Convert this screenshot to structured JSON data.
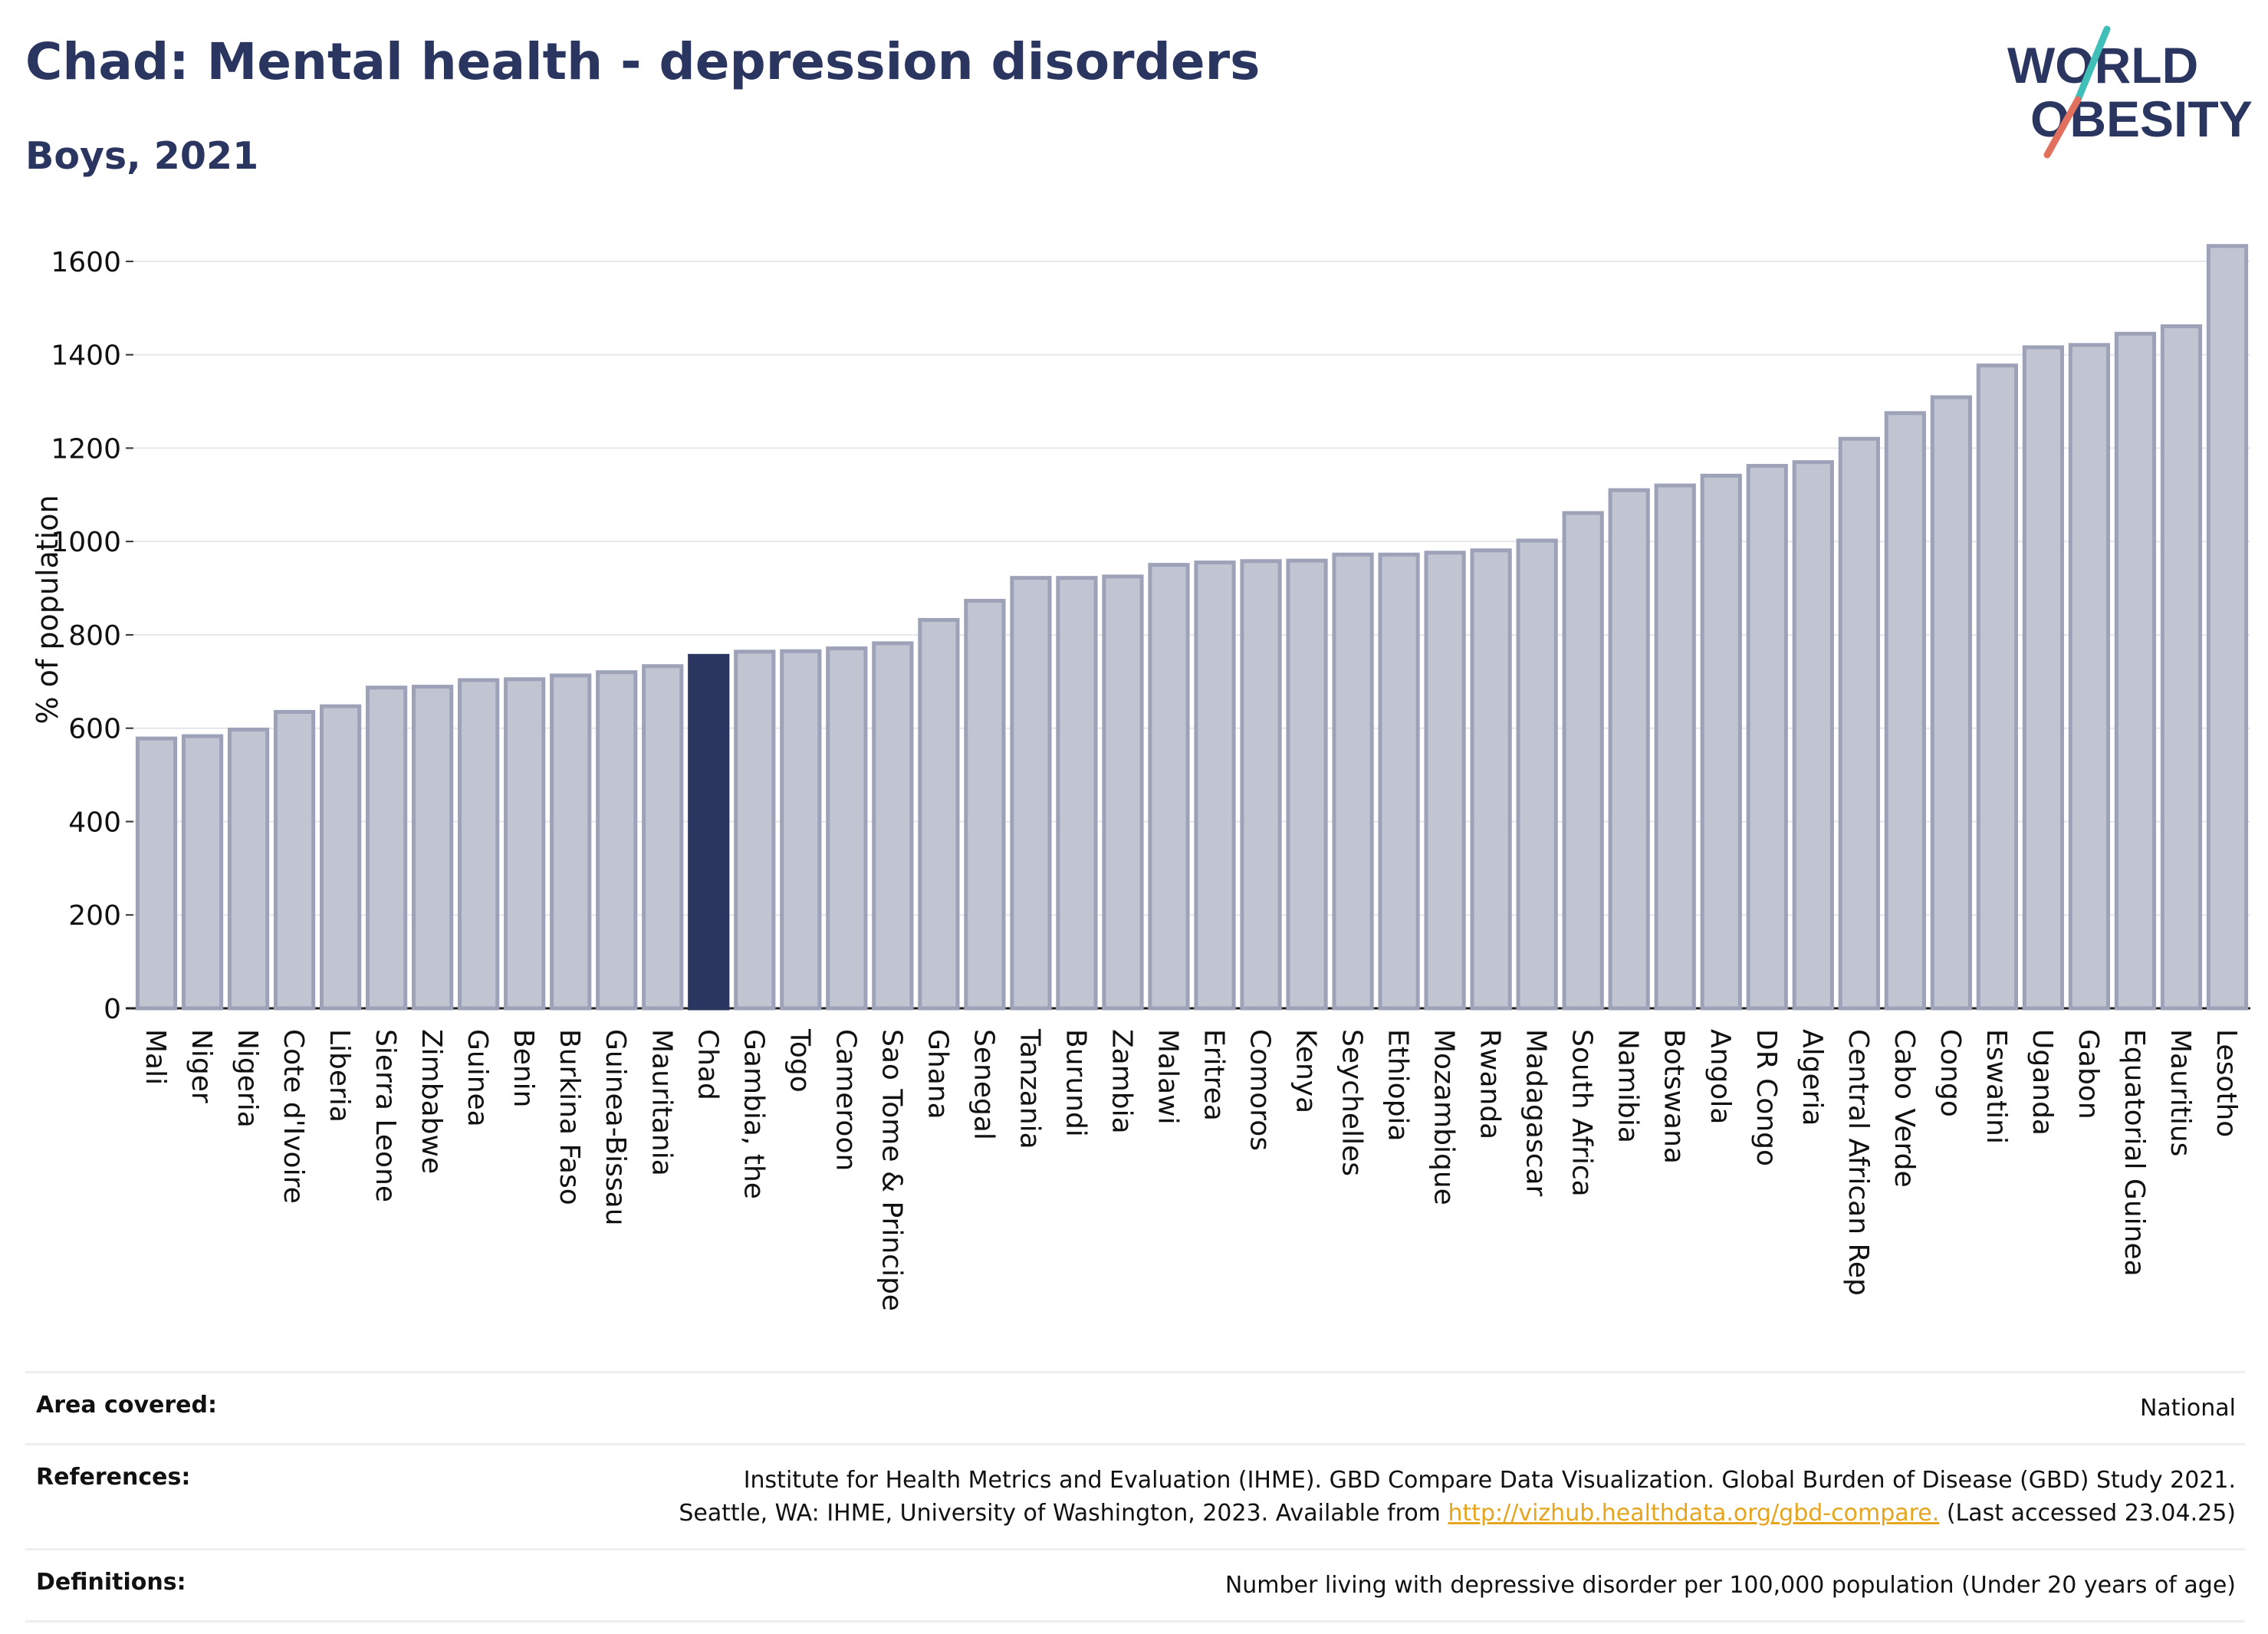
{
  "header": {
    "title": "Chad: Mental health - depression disorders",
    "subtitle": "Boys, 2021"
  },
  "logo": {
    "line1": "WORLD",
    "line2": "OBESITY"
  },
  "colors": {
    "bar": "#c1c4d1",
    "bar_edge": "#9da2b8",
    "highlight": "#2a3560",
    "text": "#2a3560",
    "link": "#e5a51e"
  },
  "chart_data": {
    "type": "bar",
    "title": "Chad: Mental health - depression disorders",
    "subtitle": "Boys, 2021",
    "xlabel": "",
    "ylabel": "% of population",
    "ylim": [
      0,
      1700
    ],
    "yticks": [
      0,
      200,
      400,
      600,
      800,
      1000,
      1200,
      1400,
      1600
    ],
    "grid": true,
    "highlight": "Chad",
    "categories": [
      "Mali",
      "Niger",
      "Nigeria",
      "Cote d'Ivoire",
      "Liberia",
      "Sierra Leone",
      "Zimbabwe",
      "Guinea",
      "Benin",
      "Burkina Faso",
      "Guinea-Bissau",
      "Mauritania",
      "Chad",
      "Gambia, the",
      "Togo",
      "Cameroon",
      "Sao Tome & Principe",
      "Ghana",
      "Senegal",
      "Tanzania",
      "Burundi",
      "Zambia",
      "Malawi",
      "Eritrea",
      "Comoros",
      "Kenya",
      "Seychelles",
      "Ethiopia",
      "Mozambique",
      "Rwanda",
      "Madagascar",
      "South Africa",
      "Namibia",
      "Botswana",
      "Angola",
      "DR Congo",
      "Algeria",
      "Central African Rep",
      "Cabo Verde",
      "Congo",
      "Eswatini",
      "Uganda",
      "Gabon",
      "Equatorial Guinea",
      "Mauritius",
      "Lesotho"
    ],
    "values": [
      578,
      583,
      597,
      635,
      647,
      687,
      689,
      703,
      705,
      713,
      720,
      733,
      755,
      764,
      765,
      771,
      782,
      832,
      873,
      922,
      922,
      925,
      950,
      955,
      958,
      959,
      972,
      972,
      976,
      981,
      1002,
      1061,
      1110,
      1120,
      1141,
      1162,
      1170,
      1220,
      1275,
      1309,
      1377,
      1416,
      1421,
      1445,
      1461,
      1633
    ]
  },
  "info": {
    "area_label": "Area covered:",
    "area_value": "National",
    "references_label": "References:",
    "references_line1": "Institute for Health Metrics and Evaluation (IHME). GBD Compare Data Visualization. Global Burden of Disease (GBD) Study 2021.",
    "references_line2_pre": "Seattle, WA: IHME, University of Washington, 2023. Available from ",
    "references_link": "http://vizhub.healthdata.org/gbd-compare.",
    "references_line2_post": " (Last accessed 23.04.25)",
    "definitions_label": "Definitions:",
    "definitions_value": "Number living with depressive disorder per 100,000 population (Under 20 years of age)"
  }
}
